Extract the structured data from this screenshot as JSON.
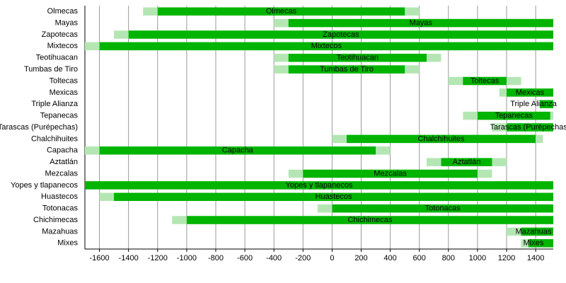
{
  "chart_data": {
    "type": "timeline",
    "xlim": [
      -1700,
      1521
    ],
    "xticks": [
      -1600,
      -1400,
      -1200,
      -1000,
      -800,
      -600,
      -400,
      -200,
      0,
      200,
      400,
      600,
      800,
      1000,
      1200,
      1400
    ],
    "grid": true,
    "dark_color": "#00b400",
    "light_color": "#b4e6b4",
    "tasks": [
      {
        "name": "Olmecas",
        "light": [
          -1300,
          600
        ],
        "dark": [
          -1200,
          500
        ]
      },
      {
        "name": "Mayas",
        "light": [
          -400,
          1521
        ],
        "dark": [
          -300,
          1521
        ]
      },
      {
        "name": "Zapotecas",
        "light": [
          -1500,
          1521
        ],
        "dark": [
          -1400,
          1521
        ]
      },
      {
        "name": "Mixtecos",
        "light": [
          -1700,
          1521
        ],
        "dark": [
          -1600,
          1521
        ]
      },
      {
        "name": "Teotihuacan",
        "light": [
          -400,
          750
        ],
        "dark": [
          -300,
          650
        ]
      },
      {
        "name": "Tumbas de Tiro",
        "light": [
          -400,
          600
        ],
        "dark": [
          -300,
          500
        ]
      },
      {
        "name": "Toltecas",
        "light": [
          800,
          1300
        ],
        "dark": [
          900,
          1200
        ]
      },
      {
        "name": "Mexicas",
        "light": [
          1150,
          1521
        ],
        "dark": [
          1200,
          1521
        ]
      },
      {
        "name": "Triple Alianza",
        "light": [
          1428,
          1521
        ],
        "dark": [
          1428,
          1521
        ]
      },
      {
        "name": "Tepanecas",
        "light": [
          900,
          1521
        ],
        "dark": [
          1000,
          1500
        ]
      },
      {
        "name": "Tarascas (Purépechas)",
        "light": [
          1100,
          1521
        ],
        "dark": [
          1200,
          1521
        ]
      },
      {
        "name": "Chalchihuites",
        "light": [
          0,
          1450
        ],
        "dark": [
          100,
          1400
        ]
      },
      {
        "name": "Capacha",
        "light": [
          -1700,
          400
        ],
        "dark": [
          -1600,
          300
        ]
      },
      {
        "name": "Aztatlán",
        "light": [
          650,
          1200
        ],
        "dark": [
          750,
          1100
        ]
      },
      {
        "name": "Mezcalas",
        "light": [
          -300,
          1100
        ],
        "dark": [
          -200,
          1000
        ]
      },
      {
        "name": "Yopes y tlapanecos",
        "light": [
          -1700,
          1521
        ],
        "dark": [
          -1700,
          1521
        ]
      },
      {
        "name": "Huastecos",
        "light": [
          -1600,
          1521
        ],
        "dark": [
          -1500,
          1521
        ]
      },
      {
        "name": "Totonacas",
        "light": [
          -100,
          1521
        ],
        "dark": [
          0,
          1521
        ]
      },
      {
        "name": "Chichimecas",
        "light": [
          -1100,
          1521
        ],
        "dark": [
          -1000,
          1521
        ]
      },
      {
        "name": "Mazahuas",
        "light": [
          1200,
          1521
        ],
        "dark": [
          1300,
          1521
        ]
      },
      {
        "name": "Mixes",
        "light": [
          1300,
          1521
        ],
        "dark": [
          1350,
          1521
        ]
      }
    ]
  }
}
